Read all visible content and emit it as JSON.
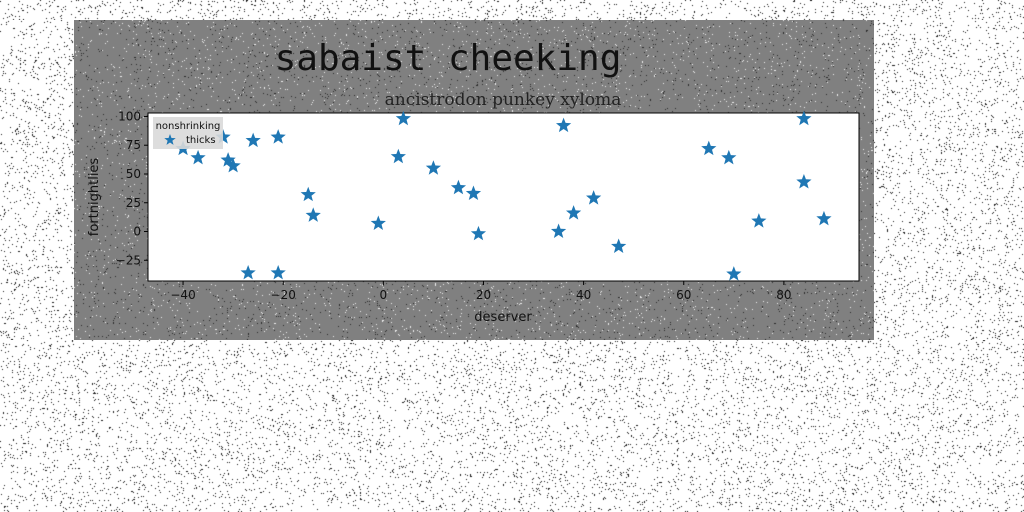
{
  "figure": {
    "title": "sabaist cheeking",
    "background": "#808080"
  },
  "chart_data": {
    "type": "scatter",
    "title": "ancistrodon punkey xyloma",
    "xlabel": "deserver",
    "ylabel": "fortnightlies",
    "xlim": [
      -47,
      95
    ],
    "ylim": [
      -43,
      103
    ],
    "xticks": [
      -40,
      -20,
      0,
      20,
      40,
      60,
      80
    ],
    "yticks": [
      -25,
      0,
      25,
      50,
      75,
      100
    ],
    "xtick_labels": [
      "−40",
      "−20",
      "0",
      "20",
      "40",
      "60",
      "80"
    ],
    "ytick_labels": [
      "−25",
      "0",
      "25",
      "50",
      "75",
      "100"
    ],
    "grid": false,
    "legend": {
      "position": "top-left",
      "title": "nonshrinking",
      "entries": [
        "thicks"
      ]
    },
    "series": [
      {
        "name": "thicks",
        "marker": "star",
        "color": "#1f77b4",
        "points": [
          {
            "x": -40,
            "y": 72
          },
          {
            "x": -37,
            "y": 64
          },
          {
            "x": -32,
            "y": 82
          },
          {
            "x": -31,
            "y": 62
          },
          {
            "x": -30,
            "y": 57
          },
          {
            "x": -26,
            "y": 79
          },
          {
            "x": -21,
            "y": 82
          },
          {
            "x": -27,
            "y": -36
          },
          {
            "x": -21,
            "y": -36
          },
          {
            "x": -15,
            "y": 32
          },
          {
            "x": -14,
            "y": 14
          },
          {
            "x": -1,
            "y": 7
          },
          {
            "x": 3,
            "y": 65
          },
          {
            "x": 4,
            "y": 98
          },
          {
            "x": 10,
            "y": 55
          },
          {
            "x": 15,
            "y": 38
          },
          {
            "x": 18,
            "y": 33
          },
          {
            "x": 19,
            "y": -2
          },
          {
            "x": 35,
            "y": 0
          },
          {
            "x": 36,
            "y": 92
          },
          {
            "x": 38,
            "y": 16
          },
          {
            "x": 42,
            "y": 29
          },
          {
            "x": 47,
            "y": -13
          },
          {
            "x": 65,
            "y": 72
          },
          {
            "x": 69,
            "y": 64
          },
          {
            "x": 70,
            "y": -37
          },
          {
            "x": 75,
            "y": 9
          },
          {
            "x": 84,
            "y": 98
          },
          {
            "x": 84,
            "y": 43
          },
          {
            "x": 88,
            "y": 11
          }
        ]
      }
    ]
  }
}
